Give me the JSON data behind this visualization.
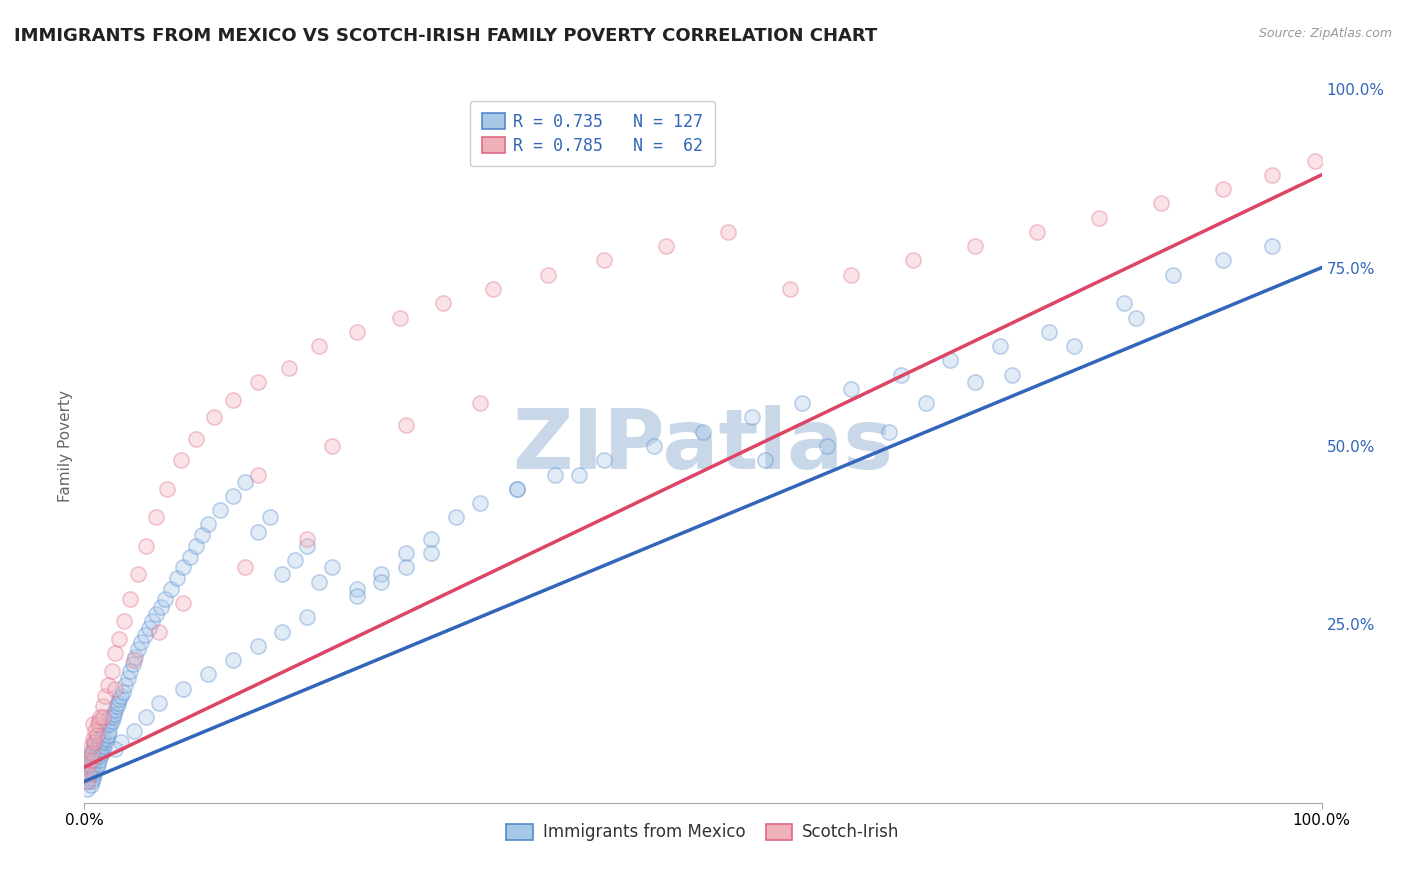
{
  "title": "IMMIGRANTS FROM MEXICO VS SCOTCH-IRISH FAMILY POVERTY CORRELATION CHART",
  "source": "Source: ZipAtlas.com",
  "ylabel": "Family Poverty",
  "xlim": [
    0,
    1.0
  ],
  "ylim": [
    0,
    1.0
  ],
  "xtick_labels": [
    "0.0%",
    "100.0%"
  ],
  "legend_r1": "R = 0.735",
  "legend_n1": "N = 127",
  "legend_r2": "R = 0.785",
  "legend_n2": "N =  62",
  "legend_label1": "Immigrants from Mexico",
  "legend_label2": "Scotch-Irish",
  "blue_face": "#a8c8e8",
  "blue_edge": "#5588cc",
  "pink_face": "#f0b0b8",
  "pink_edge": "#e06888",
  "blue_line_color": "#3366bb",
  "pink_line_color": "#dd4466",
  "text_color": "#3366bb",
  "watermark": "ZIPatlas",
  "blue_scatter_x": [
    0.002,
    0.003,
    0.003,
    0.004,
    0.004,
    0.005,
    0.005,
    0.005,
    0.006,
    0.006,
    0.006,
    0.007,
    0.007,
    0.007,
    0.008,
    0.008,
    0.008,
    0.009,
    0.009,
    0.009,
    0.01,
    0.01,
    0.01,
    0.011,
    0.011,
    0.012,
    0.012,
    0.013,
    0.013,
    0.014,
    0.014,
    0.015,
    0.015,
    0.016,
    0.017,
    0.018,
    0.018,
    0.019,
    0.02,
    0.02,
    0.021,
    0.022,
    0.023,
    0.024,
    0.025,
    0.026,
    0.027,
    0.028,
    0.03,
    0.031,
    0.033,
    0.035,
    0.037,
    0.039,
    0.041,
    0.043,
    0.046,
    0.049,
    0.052,
    0.055,
    0.058,
    0.062,
    0.065,
    0.07,
    0.075,
    0.08,
    0.085,
    0.09,
    0.095,
    0.1,
    0.11,
    0.12,
    0.13,
    0.14,
    0.15,
    0.16,
    0.17,
    0.18,
    0.19,
    0.2,
    0.22,
    0.24,
    0.26,
    0.28,
    0.3,
    0.32,
    0.35,
    0.38,
    0.42,
    0.46,
    0.5,
    0.54,
    0.58,
    0.62,
    0.66,
    0.7,
    0.74,
    0.78,
    0.84,
    0.88,
    0.92,
    0.96,
    0.55,
    0.6,
    0.65,
    0.68,
    0.72,
    0.75,
    0.8,
    0.85,
    0.35,
    0.4,
    0.28,
    0.26,
    0.24,
    0.22,
    0.18,
    0.16,
    0.14,
    0.12,
    0.1,
    0.08,
    0.06,
    0.05,
    0.04,
    0.03,
    0.025
  ],
  "blue_scatter_y": [
    0.02,
    0.03,
    0.05,
    0.035,
    0.055,
    0.025,
    0.045,
    0.065,
    0.03,
    0.05,
    0.07,
    0.035,
    0.055,
    0.075,
    0.04,
    0.06,
    0.08,
    0.045,
    0.065,
    0.085,
    0.05,
    0.07,
    0.09,
    0.055,
    0.075,
    0.06,
    0.08,
    0.065,
    0.085,
    0.07,
    0.09,
    0.075,
    0.095,
    0.08,
    0.085,
    0.09,
    0.11,
    0.095,
    0.1,
    0.12,
    0.11,
    0.115,
    0.12,
    0.125,
    0.13,
    0.135,
    0.14,
    0.145,
    0.15,
    0.155,
    0.165,
    0.175,
    0.185,
    0.195,
    0.205,
    0.215,
    0.225,
    0.235,
    0.245,
    0.255,
    0.265,
    0.275,
    0.285,
    0.3,
    0.315,
    0.33,
    0.345,
    0.36,
    0.375,
    0.39,
    0.41,
    0.43,
    0.45,
    0.38,
    0.4,
    0.32,
    0.34,
    0.36,
    0.31,
    0.33,
    0.3,
    0.32,
    0.35,
    0.37,
    0.4,
    0.42,
    0.44,
    0.46,
    0.48,
    0.5,
    0.52,
    0.54,
    0.56,
    0.58,
    0.6,
    0.62,
    0.64,
    0.66,
    0.7,
    0.74,
    0.76,
    0.78,
    0.48,
    0.5,
    0.52,
    0.56,
    0.59,
    0.6,
    0.64,
    0.68,
    0.44,
    0.46,
    0.35,
    0.33,
    0.31,
    0.29,
    0.26,
    0.24,
    0.22,
    0.2,
    0.18,
    0.16,
    0.14,
    0.12,
    0.1,
    0.085,
    0.075
  ],
  "pink_scatter_x": [
    0.002,
    0.003,
    0.004,
    0.005,
    0.005,
    0.006,
    0.007,
    0.007,
    0.008,
    0.009,
    0.01,
    0.011,
    0.012,
    0.013,
    0.015,
    0.017,
    0.019,
    0.022,
    0.025,
    0.028,
    0.032,
    0.037,
    0.043,
    0.05,
    0.058,
    0.067,
    0.078,
    0.09,
    0.105,
    0.12,
    0.14,
    0.165,
    0.19,
    0.22,
    0.255,
    0.29,
    0.33,
    0.375,
    0.42,
    0.47,
    0.52,
    0.57,
    0.62,
    0.67,
    0.72,
    0.77,
    0.82,
    0.87,
    0.92,
    0.96,
    0.995,
    0.14,
    0.2,
    0.26,
    0.32,
    0.18,
    0.13,
    0.08,
    0.06,
    0.04,
    0.025,
    0.015
  ],
  "pink_scatter_y": [
    0.03,
    0.055,
    0.04,
    0.06,
    0.08,
    0.07,
    0.09,
    0.11,
    0.085,
    0.1,
    0.095,
    0.11,
    0.115,
    0.12,
    0.135,
    0.15,
    0.165,
    0.185,
    0.21,
    0.23,
    0.255,
    0.285,
    0.32,
    0.36,
    0.4,
    0.44,
    0.48,
    0.51,
    0.54,
    0.565,
    0.59,
    0.61,
    0.64,
    0.66,
    0.68,
    0.7,
    0.72,
    0.74,
    0.76,
    0.78,
    0.8,
    0.72,
    0.74,
    0.76,
    0.78,
    0.8,
    0.82,
    0.84,
    0.86,
    0.88,
    0.9,
    0.46,
    0.5,
    0.53,
    0.56,
    0.37,
    0.33,
    0.28,
    0.24,
    0.2,
    0.16,
    0.12
  ],
  "blue_line_x": [
    0.0,
    1.0
  ],
  "blue_line_y": [
    0.03,
    0.75
  ],
  "pink_line_x": [
    0.0,
    1.0
  ],
  "pink_line_y": [
    0.05,
    0.88
  ],
  "grid_color": "#cccccc",
  "bg_color": "#ffffff",
  "title_fontsize": 13,
  "axis_fontsize": 11,
  "scatter_size": 120,
  "scatter_alpha": 0.35,
  "watermark_color": "#c8d8e8",
  "watermark_fontsize": 60
}
